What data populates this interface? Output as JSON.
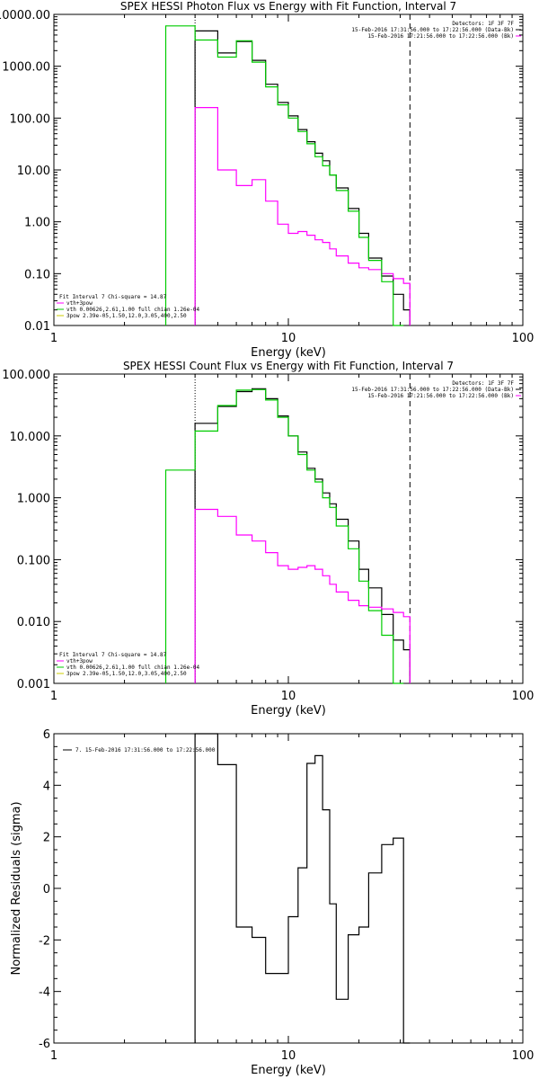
{
  "chart_data": [
    {
      "type": "line",
      "title": "SPEX HESSI Photon Flux vs Energy with Fit Function, Interval 7",
      "xlabel": "Energy (keV)",
      "ylabel": "",
      "xscale": "log",
      "yscale": "log",
      "xlim": [
        1,
        100
      ],
      "ylim": [
        0.01,
        10000
      ],
      "xticks": [
        "1",
        "10",
        "100"
      ],
      "yticks": [
        "0.01",
        "0.10",
        "1.00",
        "10.00",
        "100.00",
        "1000.00",
        "10000.00"
      ],
      "header_text": [
        "Detectors: 1F 3F 7F",
        "15-Feb-2016 17:31:56.000 to 17:22:56.000 (Data-Bk)",
        "15-Feb-2016 17:21:56.000 to 17:22:56.000 (Bk)"
      ],
      "fit_text": [
        "Fit Interval 7   Chi-square = 14.87",
        "vth+3pow",
        "vth 0.00626,2.61,1.00  full chian 1.26e-04",
        "3pow 2.39e-05,1.50,12.0,3.05,400,2.50"
      ],
      "grid": false,
      "vlines": [
        {
          "x": 4.0,
          "style": "dotted",
          "color": "#000000"
        },
        {
          "x": 33.0,
          "style": "dashed",
          "color": "#000000"
        }
      ],
      "series": [
        {
          "color": "#000000",
          "edges": [
            4,
            5,
            6,
            7,
            8,
            9,
            10,
            11,
            12,
            13,
            14,
            15,
            16,
            18,
            20,
            22,
            25,
            28,
            31,
            33
          ],
          "values": [
            4800,
            1800,
            3000,
            1300,
            450,
            200,
            110,
            60,
            35,
            21,
            15,
            8,
            4.5,
            1.8,
            0.6,
            0.2,
            0.09,
            0.04,
            0.02
          ]
        },
        {
          "color": "#ff00ff",
          "edges": [
            4,
            5,
            6,
            7,
            8,
            9,
            10,
            11,
            12,
            13,
            14,
            15,
            16,
            18,
            20,
            22,
            25,
            28,
            31,
            33
          ],
          "values": [
            160,
            10,
            5,
            6.5,
            2.5,
            0.9,
            0.6,
            0.65,
            0.55,
            0.45,
            0.4,
            0.3,
            0.22,
            0.16,
            0.13,
            0.12,
            0.1,
            0.08,
            0.065
          ]
        },
        {
          "color": "#00cc00",
          "edges": [
            3,
            4,
            5,
            6,
            7,
            8,
            9,
            10,
            11,
            12,
            13,
            14,
            15,
            16,
            18,
            20,
            22,
            25,
            28,
            31
          ],
          "values": [
            6000,
            3200,
            1500,
            3100,
            1200,
            400,
            180,
            100,
            55,
            32,
            18,
            12,
            8,
            4,
            1.6,
            0.5,
            0.18,
            0.07,
            0.01
          ]
        }
      ]
    },
    {
      "type": "line",
      "title": "SPEX HESSI Count Flux vs Energy with Fit Function, Interval 7",
      "xlabel": "Energy (keV)",
      "ylabel": "",
      "xscale": "log",
      "yscale": "log",
      "xlim": [
        1,
        100
      ],
      "ylim": [
        0.001,
        100
      ],
      "xticks": [
        "1",
        "10",
        "100"
      ],
      "yticks": [
        "0.001",
        "0.010",
        "0.100",
        "1.000",
        "10.000",
        "100.000"
      ],
      "header_text": [
        "Detectors: 1F 3F 7F",
        "15-Feb-2016 17:31:56.000 to 17:22:56.000 (Data-Bk)",
        "15-Feb-2016 17:21:56.000 to 17:22:56.000 (Bk)"
      ],
      "fit_text": [
        "Fit Interval 7   Chi-square = 14.87",
        "vth+3pow",
        "vth 0.00626,2.61,1.00  full chian 1.26e-04",
        "3pow 2.39e-05,1.50,12.0,3.05,400,2.50"
      ],
      "grid": false,
      "vlines": [
        {
          "x": 4.0,
          "style": "dotted",
          "color": "#000000"
        },
        {
          "x": 33.0,
          "style": "dashed",
          "color": "#000000"
        }
      ],
      "series": [
        {
          "color": "#000000",
          "edges": [
            4,
            5,
            6,
            7,
            8,
            9,
            10,
            11,
            12,
            13,
            14,
            15,
            16,
            18,
            20,
            22,
            25,
            28,
            31,
            33
          ],
          "values": [
            16,
            30,
            52,
            58,
            40,
            21,
            10,
            5.5,
            3,
            2,
            1.2,
            0.8,
            0.45,
            0.2,
            0.07,
            0.035,
            0.013,
            0.005,
            0.0035
          ]
        },
        {
          "color": "#ff00ff",
          "edges": [
            4,
            5,
            6,
            7,
            8,
            9,
            10,
            11,
            12,
            13,
            14,
            15,
            16,
            18,
            20,
            22,
            25,
            28,
            31,
            33
          ],
          "values": [
            0.65,
            0.5,
            0.25,
            0.2,
            0.13,
            0.08,
            0.07,
            0.075,
            0.08,
            0.07,
            0.055,
            0.04,
            0.03,
            0.022,
            0.018,
            0.017,
            0.016,
            0.014,
            0.012
          ]
        },
        {
          "color": "#00cc00",
          "edges": [
            3,
            4,
            5,
            6,
            7,
            8,
            9,
            10,
            11,
            12,
            13,
            14,
            15,
            16,
            18,
            20,
            22,
            25,
            28,
            31
          ],
          "values": [
            2.8,
            12,
            31,
            55,
            56,
            38,
            20,
            10,
            5,
            2.8,
            1.8,
            1.0,
            0.7,
            0.35,
            0.15,
            0.045,
            0.015,
            0.006,
            0.001
          ]
        }
      ]
    },
    {
      "type": "line",
      "title": "",
      "xlabel": "Energy (keV)",
      "ylabel": "Normalized Residuals (sigma)",
      "xscale": "log",
      "yscale": "linear",
      "xlim": [
        1,
        100
      ],
      "ylim": [
        -6,
        6
      ],
      "xticks": [
        "1",
        "10",
        "100"
      ],
      "yticks": [
        "-6",
        "-4",
        "-2",
        "0",
        "2",
        "4",
        "6"
      ],
      "legend": "7. 15-Feb-2016 17:31:56.000 to 17:22:56.000",
      "grid": false,
      "series": [
        {
          "color": "#000000",
          "edges": [
            4,
            5,
            6,
            7,
            8,
            9,
            10,
            11,
            12,
            13,
            14,
            15,
            16,
            18,
            20,
            22,
            25,
            28,
            31,
            33
          ],
          "values": [
            6.0,
            4.8,
            -1.5,
            -1.9,
            -3.3,
            -3.3,
            -1.1,
            0.8,
            4.85,
            5.15,
            3.05,
            -0.6,
            -4.3,
            -1.8,
            -1.5,
            0.6,
            1.7,
            1.95,
            -6
          ]
        }
      ]
    }
  ]
}
